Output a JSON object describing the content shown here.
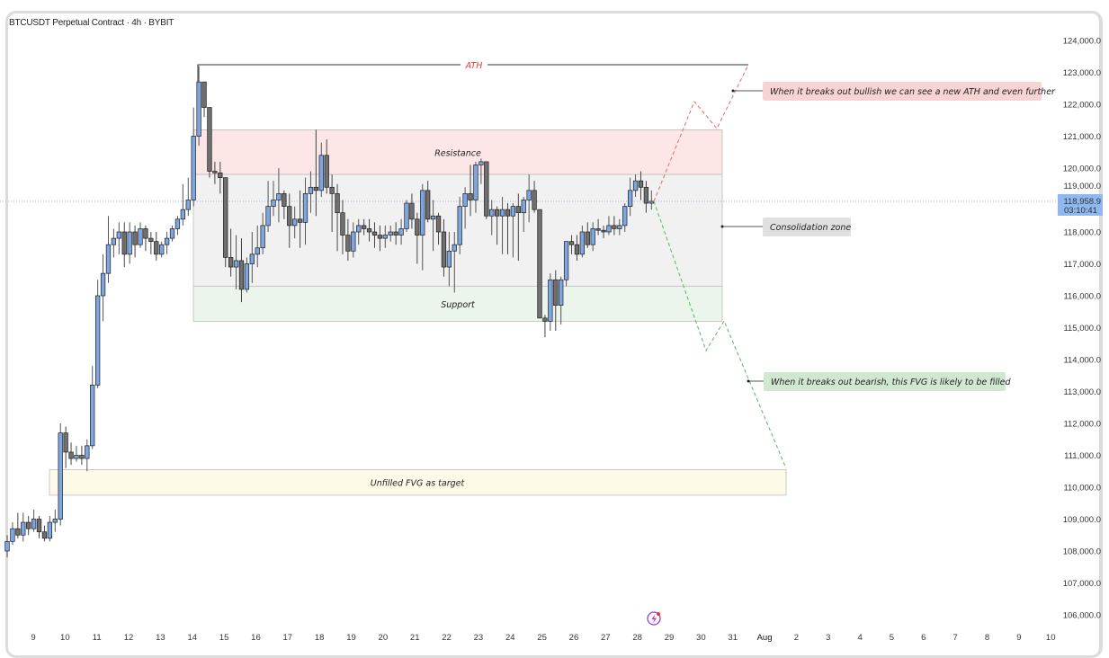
{
  "header": {
    "title": "BTCUSDT Perpetual Contract · 4h · BYBIT"
  },
  "colors": {
    "up": "#7ea6e0",
    "down": "#6f6f6f",
    "wick": "#222222",
    "price_label_bg": "#8fb8f0",
    "resistance": "#fde6e6",
    "consolidation": "#f1f1f1",
    "support": "#ebf5eb",
    "fvg": "#fdfbe8",
    "ath": "#e53935"
  },
  "price_tag": {
    "price": "118,958.9",
    "countdown": "03:10:41"
  },
  "tool_icon": "lightning-bolt-icon",
  "chart_data": {
    "type": "candlestick",
    "title": "BTCUSDT Perpetual Contract · 4h · BYBIT",
    "ylim": [
      105700,
      124400
    ],
    "grid": false,
    "y_ticks": [
      "124,000.0",
      "123,000.0",
      "122,000.0",
      "121,000.0",
      "120,000.0",
      "119,000.0",
      "118,000.0",
      "117,000.0",
      "116,000.0",
      "115,000.0",
      "114,000.0",
      "113,000.0",
      "112,000.0",
      "111,000.0",
      "110,000.0",
      "109,000.0",
      "108,000.0",
      "107,000.0",
      "106,000.0"
    ],
    "y_tick_values": [
      124000,
      123000,
      122000,
      121000,
      120000,
      119000,
      118000,
      117000,
      116000,
      115000,
      114000,
      113000,
      112000,
      111000,
      110000,
      109000,
      108000,
      107000,
      106000
    ],
    "x_ticks": [
      "9",
      "10",
      "11",
      "12",
      "13",
      "14",
      "15",
      "16",
      "17",
      "18",
      "19",
      "20",
      "21",
      "22",
      "23",
      "24",
      "25",
      "26",
      "27",
      "28",
      "29",
      "30",
      "31",
      "Aug",
      "2",
      "3",
      "4",
      "5",
      "6",
      "7",
      "8",
      "9",
      "10"
    ],
    "candle_columns": [
      "open",
      "high",
      "low",
      "close"
    ],
    "candles": [
      [
        108000,
        108500,
        107800,
        108300
      ],
      [
        108300,
        108900,
        108200,
        108700
      ],
      [
        108700,
        109200,
        108400,
        108500
      ],
      [
        108500,
        109200,
        108300,
        108900
      ],
      [
        108900,
        109100,
        108500,
        108700
      ],
      [
        108700,
        109300,
        108600,
        109000
      ],
      [
        109000,
        109100,
        108400,
        108600
      ],
      [
        108600,
        108800,
        108300,
        108400
      ],
      [
        108400,
        109100,
        108300,
        108900
      ],
      [
        108900,
        109300,
        108600,
        109000
      ],
      [
        109000,
        112000,
        108800,
        111700
      ],
      [
        111700,
        111900,
        110600,
        111100
      ],
      [
        111100,
        111400,
        110700,
        110900
      ],
      [
        110900,
        111300,
        110800,
        111000
      ],
      [
        111000,
        111300,
        110700,
        110900
      ],
      [
        110900,
        111500,
        110500,
        111300
      ],
      [
        111300,
        113800,
        111200,
        113200
      ],
      [
        113200,
        116500,
        113100,
        116000
      ],
      [
        116000,
        117300,
        115200,
        116700
      ],
      [
        116700,
        118500,
        116400,
        117600
      ],
      [
        117600,
        118100,
        117200,
        117800
      ],
      [
        117800,
        118300,
        117300,
        118000
      ],
      [
        118000,
        118300,
        116900,
        117300
      ],
      [
        117300,
        118300,
        117000,
        118000
      ],
      [
        118000,
        118200,
        117200,
        117600
      ],
      [
        117600,
        118300,
        117500,
        118100
      ],
      [
        118100,
        118200,
        117400,
        117800
      ],
      [
        117800,
        118000,
        117300,
        117700
      ],
      [
        117700,
        118000,
        117100,
        117300
      ],
      [
        117300,
        117700,
        117200,
        117600
      ],
      [
        117600,
        118000,
        117300,
        117800
      ],
      [
        117800,
        118200,
        117700,
        118100
      ],
      [
        118100,
        118500,
        117900,
        118400
      ],
      [
        118400,
        119500,
        118200,
        118700
      ],
      [
        118700,
        119700,
        118500,
        119000
      ],
      [
        119000,
        121900,
        118800,
        121000
      ],
      [
        121000,
        123200,
        120700,
        122700
      ],
      [
        122700,
        122700,
        121600,
        121900
      ],
      [
        121900,
        121900,
        119700,
        119900
      ],
      [
        119900,
        120200,
        119500,
        119850
      ],
      [
        119850,
        120200,
        119200,
        119700
      ],
      [
        119700,
        119700,
        116900,
        117200
      ],
      [
        117200,
        118100,
        116600,
        116900
      ],
      [
        116900,
        117900,
        116200,
        117100
      ],
      [
        117100,
        117800,
        115800,
        116200
      ],
      [
        116200,
        117200,
        116100,
        117000
      ],
      [
        117000,
        118000,
        116400,
        117300
      ],
      [
        117300,
        118200,
        116900,
        117500
      ],
      [
        117500,
        118600,
        117300,
        118200
      ],
      [
        118200,
        119600,
        118000,
        118800
      ],
      [
        118800,
        119600,
        118500,
        119000
      ],
      [
        119000,
        120000,
        118300,
        119200
      ],
      [
        119200,
        119300,
        118400,
        118800
      ],
      [
        118800,
        119200,
        117500,
        118200
      ],
      [
        118200,
        118800,
        117800,
        118400
      ],
      [
        118400,
        119300,
        117500,
        118300
      ],
      [
        118300,
        119700,
        117600,
        119200
      ],
      [
        119200,
        119900,
        118600,
        119400
      ],
      [
        119400,
        121200,
        118500,
        119300
      ],
      [
        119300,
        120800,
        119100,
        120400
      ],
      [
        120400,
        120900,
        119200,
        119400
      ],
      [
        119400,
        119800,
        118000,
        119200
      ],
      [
        119200,
        119500,
        117400,
        118600
      ],
      [
        118600,
        119000,
        117300,
        117900
      ],
      [
        117900,
        118400,
        117100,
        117400
      ],
      [
        117400,
        118300,
        117200,
        118000
      ],
      [
        118000,
        118400,
        117600,
        118200
      ],
      [
        118200,
        118400,
        117900,
        118100
      ],
      [
        118100,
        118400,
        117700,
        118000
      ],
      [
        118000,
        118300,
        117500,
        117900
      ],
      [
        117900,
        118200,
        117400,
        117800
      ],
      [
        117800,
        118200,
        117500,
        117900
      ],
      [
        117900,
        118200,
        117700,
        118000
      ],
      [
        118000,
        118300,
        117600,
        117900
      ],
      [
        117900,
        118400,
        117600,
        118100
      ],
      [
        118100,
        119000,
        118000,
        118900
      ],
      [
        118900,
        119200,
        118100,
        118400
      ],
      [
        118400,
        118600,
        117000,
        117900
      ],
      [
        117900,
        119500,
        116800,
        119300
      ],
      [
        119300,
        119600,
        118300,
        118400
      ],
      [
        118400,
        119000,
        117400,
        118500
      ],
      [
        118500,
        118600,
        117600,
        118000
      ],
      [
        118000,
        118400,
        116600,
        116900
      ],
      [
        116900,
        118000,
        116300,
        117400
      ],
      [
        117400,
        118000,
        116100,
        117600
      ],
      [
        117600,
        119100,
        117300,
        118800
      ],
      [
        118800,
        119400,
        118100,
        119200
      ],
      [
        119200,
        120100,
        118500,
        119000
      ],
      [
        119000,
        120200,
        118600,
        120100
      ],
      [
        120100,
        120300,
        119500,
        120200
      ],
      [
        120200,
        120200,
        118400,
        118500
      ],
      [
        118500,
        119000,
        117900,
        118700
      ],
      [
        118700,
        118800,
        117600,
        118500
      ],
      [
        118500,
        119100,
        117300,
        118700
      ],
      [
        118700,
        118900,
        117300,
        118500
      ],
      [
        118500,
        118900,
        117200,
        118800
      ],
      [
        118800,
        119200,
        117100,
        118600
      ],
      [
        118600,
        119100,
        118000,
        119000
      ],
      [
        119000,
        119800,
        118300,
        119300
      ],
      [
        119300,
        119600,
        118600,
        118700
      ],
      [
        118700,
        118700,
        115300,
        115300
      ],
      [
        115300,
        115400,
        114700,
        115200
      ],
      [
        115200,
        116700,
        114900,
        116500
      ],
      [
        116500,
        116800,
        114900,
        115700
      ],
      [
        115700,
        116600,
        115100,
        116500
      ],
      [
        116500,
        117700,
        116300,
        117700
      ],
      [
        117700,
        117900,
        117300,
        117600
      ],
      [
        117600,
        117900,
        117100,
        117300
      ],
      [
        117300,
        118200,
        117200,
        118000
      ],
      [
        118000,
        118300,
        117500,
        117600
      ],
      [
        117600,
        118300,
        117400,
        118100
      ],
      [
        118100,
        118400,
        117900,
        118050
      ],
      [
        118050,
        118200,
        117800,
        118000
      ],
      [
        118000,
        118500,
        117900,
        118200
      ],
      [
        118200,
        118500,
        117900,
        118100
      ],
      [
        118100,
        118400,
        117900,
        118200
      ],
      [
        118200,
        118900,
        118000,
        118800
      ],
      [
        118800,
        119700,
        118500,
        119300
      ],
      [
        119300,
        119800,
        119100,
        119600
      ],
      [
        119600,
        119900,
        119000,
        119400
      ],
      [
        119400,
        119600,
        118600,
        118900
      ],
      [
        118900,
        119300,
        118700,
        118959
      ]
    ],
    "annotations": {
      "ath": {
        "label": "ATH",
        "price": 123240
      },
      "resistance": {
        "label": "Resistance",
        "top": 121200,
        "bottom": 119800
      },
      "consolidation": {
        "top": 119800,
        "bottom": 116300
      },
      "support": {
        "label": "Support",
        "top": 116300,
        "bottom": 115200
      },
      "fvg": {
        "label": "Unfilled FVG as target",
        "top": 110550,
        "bottom": 109750
      },
      "callouts": [
        {
          "text": "When it breaks out bullish we can see a new ATH and even further",
          "tone": "bullish"
        },
        {
          "text": "Consolidation zone",
          "tone": "neutral"
        },
        {
          "text": "When it breaks out bearish, this FVG is likely to be filled",
          "tone": "bearish"
        }
      ]
    }
  }
}
